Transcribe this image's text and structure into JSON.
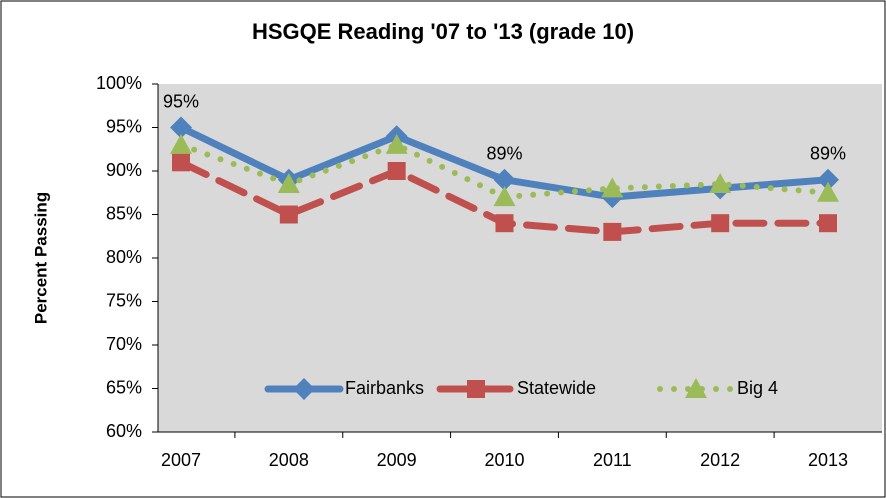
{
  "chart_data": {
    "type": "line",
    "title": "HSGQE Reading '07 to '13 (grade 10)",
    "y_label": "Percent Passing",
    "categories": [
      "2007",
      "2008",
      "2009",
      "2010",
      "2011",
      "2012",
      "2013"
    ],
    "series": [
      {
        "name": "Fairbanks",
        "color": "#4f81bd",
        "marker": "diamond",
        "dash": "solid",
        "values": [
          95,
          89,
          94,
          89,
          87,
          88,
          89
        ],
        "value_labels": [
          "95%",
          null,
          null,
          "89%",
          null,
          null,
          "89%"
        ]
      },
      {
        "name": "Statewide",
        "color": "#c0504d",
        "marker": "square",
        "dash": "dashed",
        "values": [
          91,
          85,
          90,
          84,
          83,
          84,
          84
        ]
      },
      {
        "name": "Big 4",
        "color": "#9bbb59",
        "marker": "triangle",
        "dash": "dotted",
        "values": [
          93,
          88.5,
          93,
          87,
          88,
          88.5,
          87.5
        ]
      }
    ],
    "ylim": [
      60,
      100
    ],
    "yticks": [
      {
        "value": 60,
        "label": "60%"
      },
      {
        "value": 65,
        "label": "65%"
      },
      {
        "value": 70,
        "label": "70%"
      },
      {
        "value": 75,
        "label": "75%"
      },
      {
        "value": 80,
        "label": "80%"
      },
      {
        "value": 85,
        "label": "85%"
      },
      {
        "value": 90,
        "label": "90%"
      },
      {
        "value": 95,
        "label": "95%"
      },
      {
        "value": 100,
        "label": "100%"
      }
    ],
    "legend": "bottom"
  }
}
